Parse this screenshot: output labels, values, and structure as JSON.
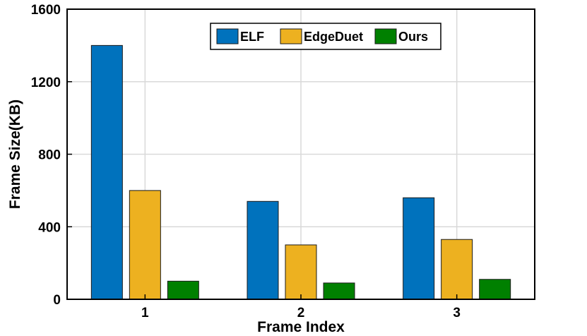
{
  "chart_data": {
    "type": "bar",
    "title": "",
    "xlabel": "Frame Index",
    "ylabel": "Frame Size(KB)",
    "categories": [
      "1",
      "2",
      "3"
    ],
    "ylim": [
      0,
      1600
    ],
    "yticks": [
      0,
      400,
      800,
      1200,
      1600
    ],
    "grid": true,
    "legend_placement": "top-center",
    "series": [
      {
        "name": "ELF",
        "color": "#0072BD",
        "values": [
          1400,
          540,
          560
        ]
      },
      {
        "name": "EdgeDuet",
        "color": "#EDB120",
        "values": [
          600,
          300,
          330
        ]
      },
      {
        "name": "Ours",
        "color": "#008000",
        "values": [
          100,
          90,
          110
        ]
      }
    ]
  }
}
